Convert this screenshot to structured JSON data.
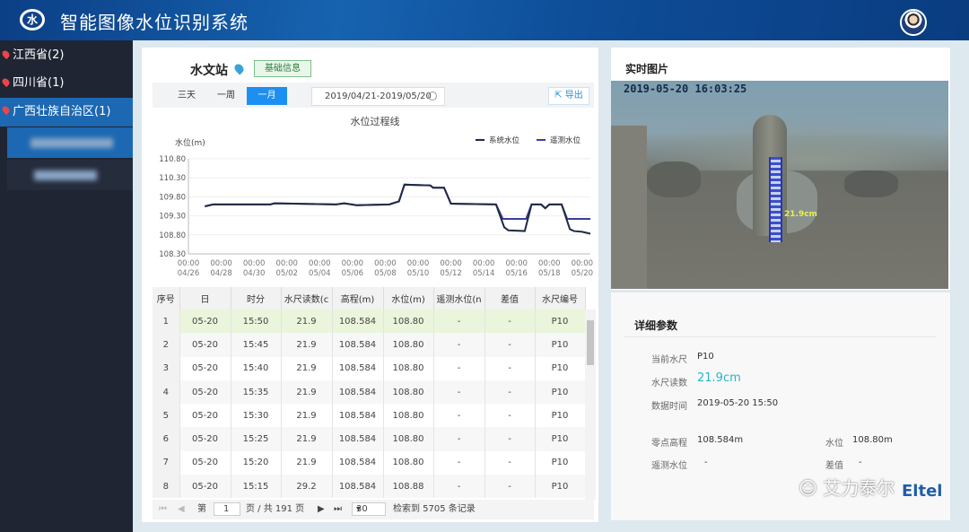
{
  "header": {
    "logo": "水",
    "title": "智能图像水位识别系统",
    "avatar": "user-avatar"
  },
  "sidebar": {
    "items": [
      {
        "label": "江西省(2)"
      },
      {
        "label": "四川省(1)"
      },
      {
        "label": "广西壮族自治区(1)"
      }
    ]
  },
  "station": {
    "name": "水文站",
    "basic_info": "基础信息"
  },
  "toolbar": {
    "ranges": [
      "三天",
      "一周",
      "一月"
    ],
    "active": "一月",
    "date_range": "2019/04/21-2019/05/20",
    "export": "导出"
  },
  "chart_data": {
    "type": "line",
    "title": "水位过程线",
    "ylabel": "水位(m)",
    "ylim": [
      108.3,
      110.8
    ],
    "yticks": [
      "110.80",
      "110.30",
      "109.80",
      "109.30",
      "108.80",
      "108.30"
    ],
    "xticks": [
      "00:00|04/26",
      "00:00|04/28",
      "00:00|04/30",
      "00:00|05/02",
      "00:00|05/04",
      "00:00|05/06",
      "00:00|05/08",
      "00:00|05/10",
      "00:00|05/12",
      "00:00|05/14",
      "00:00|05/16",
      "00:00|05/18",
      "00:00|05/20"
    ],
    "xlim": [
      "04-26 00:00",
      "05-20 12:00"
    ],
    "legend": "top-right",
    "series": [
      {
        "name": "系统水位",
        "color": "#1f2a44",
        "points": [
          [
            "04-27 00:00",
            109.55
          ],
          [
            "04-27 12:00",
            109.6
          ],
          [
            "05-01 00:00",
            109.6
          ],
          [
            "05-01 06:00",
            109.63
          ],
          [
            "05-05 00:00",
            109.6
          ],
          [
            "05-05 12:00",
            109.63
          ],
          [
            "05-06 06:00",
            109.58
          ],
          [
            "05-08 06:00",
            109.6
          ],
          [
            "05-08 20:00",
            109.68
          ],
          [
            "05-09 04:00",
            110.12
          ],
          [
            "05-10 18:00",
            110.1
          ],
          [
            "05-10 22:00",
            110.04
          ],
          [
            "05-11 14:00",
            110.04
          ],
          [
            "05-12 00:00",
            109.62
          ],
          [
            "05-14 18:00",
            109.6
          ],
          [
            "05-15 06:00",
            109.0
          ],
          [
            "05-15 12:00",
            108.92
          ],
          [
            "05-16 12:00",
            108.9
          ],
          [
            "05-16 22:00",
            109.6
          ],
          [
            "05-17 12:00",
            109.6
          ],
          [
            "05-17 18:00",
            109.5
          ],
          [
            "05-18 00:00",
            109.6
          ],
          [
            "05-18 18:00",
            109.6
          ],
          [
            "05-19 06:00",
            108.95
          ],
          [
            "05-19 12:00",
            108.9
          ],
          [
            "05-20 00:00",
            108.88
          ],
          [
            "05-20 12:00",
            108.83
          ]
        ]
      },
      {
        "name": "遥测水位",
        "color": "#3b3f9a",
        "points": [
          [
            "04-27 00:00",
            109.55
          ],
          [
            "04-27 12:00",
            109.6
          ],
          [
            "05-01 00:00",
            109.6
          ],
          [
            "05-01 06:00",
            109.63
          ],
          [
            "05-05 00:00",
            109.6
          ],
          [
            "05-05 12:00",
            109.63
          ],
          [
            "05-06 06:00",
            109.58
          ],
          [
            "05-08 06:00",
            109.6
          ],
          [
            "05-08 20:00",
            109.68
          ],
          [
            "05-09 04:00",
            110.12
          ],
          [
            "05-10 18:00",
            110.1
          ],
          [
            "05-10 22:00",
            110.04
          ],
          [
            "05-11 14:00",
            110.04
          ],
          [
            "05-12 00:00",
            109.62
          ],
          [
            "05-14 18:00",
            109.6
          ],
          [
            "05-15 04:00",
            109.22
          ],
          [
            "05-16 14:00",
            109.22
          ],
          [
            "05-16 22:00",
            109.6
          ],
          [
            "05-17 12:00",
            109.6
          ],
          [
            "05-17 18:00",
            109.5
          ],
          [
            "05-18 00:00",
            109.6
          ],
          [
            "05-18 18:00",
            109.6
          ],
          [
            "05-19 02:00",
            109.22
          ],
          [
            "05-20 12:00",
            109.22
          ]
        ]
      }
    ]
  },
  "table": {
    "headers": [
      "序号",
      "日",
      "时分",
      "水尺读数(c",
      "高程(m)",
      "水位(m)",
      "遥测水位(n",
      "差值",
      "水尺编号"
    ],
    "rows": [
      [
        "1",
        "05-20",
        "15:50",
        "21.9",
        "108.584",
        "108.80",
        "-",
        "-",
        "P10"
      ],
      [
        "2",
        "05-20",
        "15:45",
        "21.9",
        "108.584",
        "108.80",
        "-",
        "-",
        "P10"
      ],
      [
        "3",
        "05-20",
        "15:40",
        "21.9",
        "108.584",
        "108.80",
        "-",
        "-",
        "P10"
      ],
      [
        "4",
        "05-20",
        "15:35",
        "21.9",
        "108.584",
        "108.80",
        "-",
        "-",
        "P10"
      ],
      [
        "5",
        "05-20",
        "15:30",
        "21.9",
        "108.584",
        "108.80",
        "-",
        "-",
        "P10"
      ],
      [
        "6",
        "05-20",
        "15:25",
        "21.9",
        "108.584",
        "108.80",
        "-",
        "-",
        "P10"
      ],
      [
        "7",
        "05-20",
        "15:20",
        "21.9",
        "108.584",
        "108.80",
        "-",
        "-",
        "P10"
      ],
      [
        "8",
        "05-20",
        "15:15",
        "29.2",
        "108.584",
        "108.88",
        "-",
        "-",
        "P10"
      ]
    ]
  },
  "pager": {
    "prefix": "第",
    "page": "1",
    "total": "页 / 共 191 页",
    "page_size": "30",
    "records": "检索到 5705 条记录"
  },
  "realtime": {
    "title": "实时图片",
    "timestamp": "2019-05-20 16:03:25",
    "reading_label": "21.9cm"
  },
  "details": {
    "title": "详细参数",
    "current_gauge_label": "当前水尺",
    "current_gauge": "P10",
    "reading_label": "水尺读数",
    "reading": "21.9cm",
    "time_label": "数据时间",
    "time": "2019-05-20 15:50",
    "zero_label": "零点高程",
    "zero": "108.584m",
    "level_label": "水位",
    "level": "108.80m",
    "tele_label": "遥测水位",
    "tele": "-",
    "diff_label": "差值",
    "diff": "-"
  },
  "watermark": {
    "text": "艾力泰尔",
    "brand": "Eltel"
  },
  "colors": {
    "accent": "#1d8ff0",
    "header": "#0e4d98",
    "reading": "#2bb3c9"
  }
}
